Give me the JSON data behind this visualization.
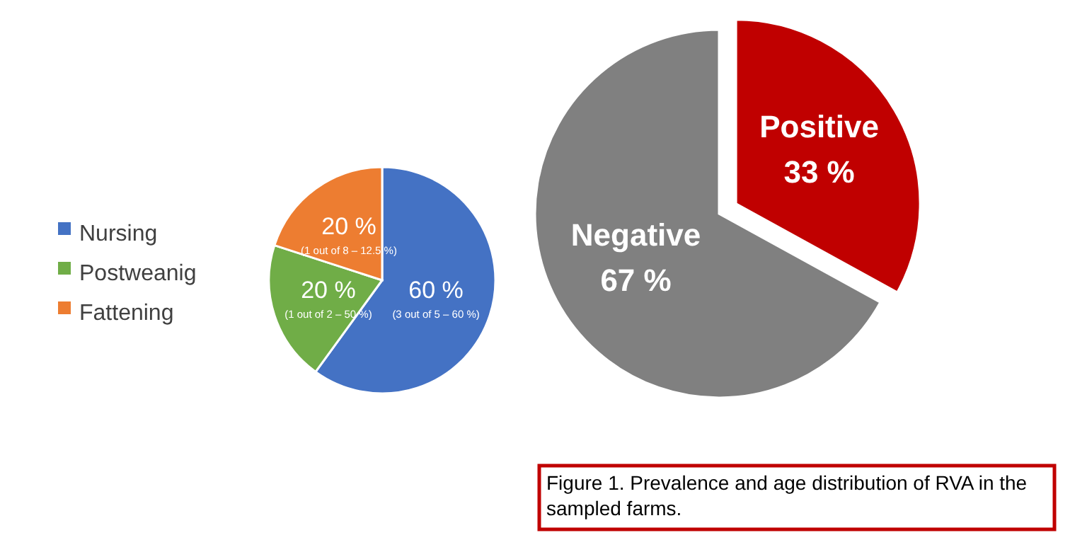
{
  "chart_data": [
    {
      "type": "pie",
      "categories": [
        "Nursing",
        "Postweanig",
        "Fattening"
      ],
      "values": [
        60,
        20,
        20
      ],
      "colors": [
        "#4472c4",
        "#70ad47",
        "#ed7d31"
      ],
      "value_labels": [
        "60 % (3 out of 5 – 60 %)",
        "20 % (1 out of 2 – 50 %)",
        "20 % (1 out of 8 – 12.5 %)"
      ],
      "legend": "left"
    },
    {
      "type": "pie",
      "categories": [
        "Positive",
        "Negative"
      ],
      "values": [
        33,
        67
      ],
      "colors": [
        "#c00000",
        "#808080"
      ],
      "value_labels": [
        "33 %",
        "67 %"
      ],
      "legend": false,
      "annotations": [
        "Figure 1. Prevalence and age distribution of RVA in the sampled farms."
      ]
    }
  ]
}
